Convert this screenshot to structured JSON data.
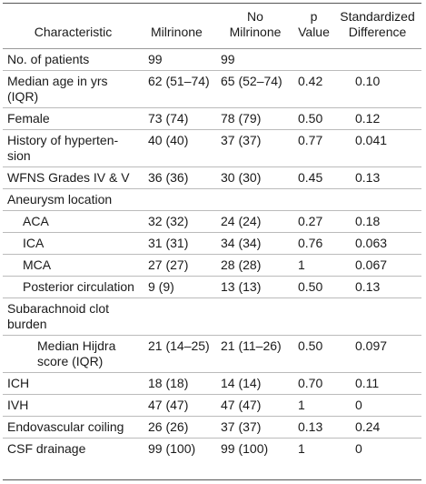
{
  "table": {
    "headers": {
      "characteristic": "Characteristic",
      "milrinone": "Milrinone",
      "no_milrinone_line1": "No",
      "no_milrinone_line2": "Milrinone",
      "p_line1": "p",
      "p_line2": "Value",
      "sd_line1": "Standardized",
      "sd_line2": "Difference"
    },
    "rows": [
      {
        "label": "No. of patients",
        "label2": "",
        "milrinone": "99",
        "no_milrinone": "99",
        "p": "",
        "sd": ""
      },
      {
        "label": "Median age in yrs",
        "label2": "(IQR)",
        "milrinone": "62 (51–74)",
        "no_milrinone": "65 (52–74)",
        "p": "0.42",
        "sd": "0.10"
      },
      {
        "label": "Female",
        "label2": "",
        "milrinone": "73 (74)",
        "no_milrinone": "78 (79)",
        "p": "0.50",
        "sd": "0.12"
      },
      {
        "label": "History of hyperten-",
        "label2": "sion",
        "milrinone": "40 (40)",
        "no_milrinone": "37 (37)",
        "p": "0.77",
        "sd": "0.041"
      },
      {
        "label": "WFNS Grades IV & V",
        "label2": "",
        "milrinone": "36 (36)",
        "no_milrinone": "30 (30)",
        "p": "0.45",
        "sd": "0.13"
      },
      {
        "label": "Aneurysm location",
        "label2": "",
        "milrinone": "",
        "no_milrinone": "",
        "p": "",
        "sd": ""
      },
      {
        "label": "ACA",
        "label2": "",
        "milrinone": "32 (32)",
        "no_milrinone": "24 (24)",
        "p": "0.27",
        "sd": "0.18"
      },
      {
        "label": "ICA",
        "label2": "",
        "milrinone": "31 (31)",
        "no_milrinone": "34 (34)",
        "p": "0.76",
        "sd": "0.063"
      },
      {
        "label": "MCA",
        "label2": "",
        "milrinone": "27 (27)",
        "no_milrinone": "28 (28)",
        "p": "1",
        "sd": "0.067"
      },
      {
        "label": "Posterior circulation",
        "label2": "",
        "milrinone": "9 (9)",
        "no_milrinone": "13 (13)",
        "p": "0.50",
        "sd": "0.13"
      },
      {
        "label": "Subarachnoid clot",
        "label2": "burden",
        "milrinone": "",
        "no_milrinone": "",
        "p": "",
        "sd": ""
      },
      {
        "label": "Median Hijdra",
        "label2": "score (IQR)",
        "milrinone": "21 (14–25)",
        "no_milrinone": "21 (11–26)",
        "p": "0.50",
        "sd": "0.097"
      },
      {
        "label": "ICH",
        "label2": "",
        "milrinone": "18 (18)",
        "no_milrinone": "14 (14)",
        "p": "0.70",
        "sd": "0.11"
      },
      {
        "label": "IVH",
        "label2": "",
        "milrinone": "47 (47)",
        "no_milrinone": "47 (47)",
        "p": "1",
        "sd": "0"
      },
      {
        "label": "Endovascular coiling",
        "label2": "",
        "milrinone": "26 (26)",
        "no_milrinone": "37 (37)",
        "p": "0.13",
        "sd": "0.24"
      },
      {
        "label": "CSF drainage",
        "label2": "",
        "milrinone": "99 (100)",
        "no_milrinone": "99 (100)",
        "p": "1",
        "sd": "0"
      }
    ]
  }
}
